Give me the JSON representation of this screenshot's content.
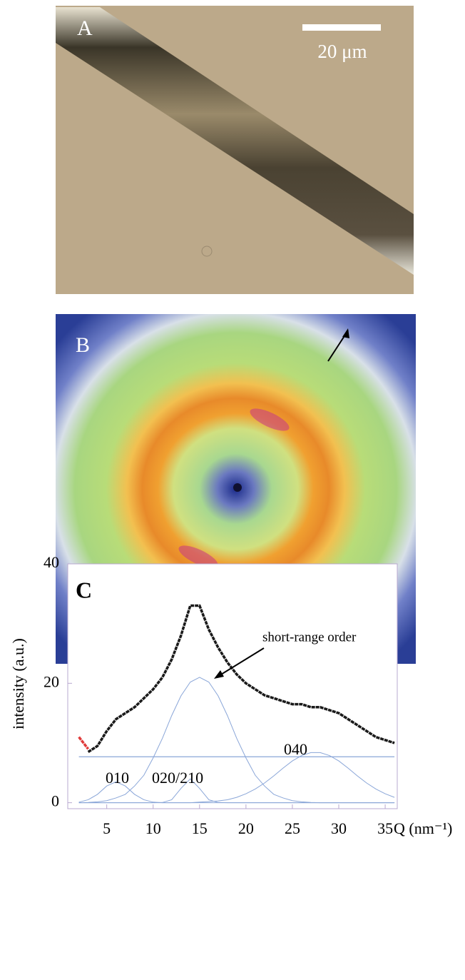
{
  "panels": [
    {
      "label": "A",
      "scale_bar": "20 μm"
    },
    {
      "label": "B"
    }
  ],
  "chart_data": {
    "type": "line",
    "label": "C",
    "x_label": "Q (nm⁻¹)",
    "y_label": "intensity (a.u.)",
    "xlim": [
      0.8,
      36.3
    ],
    "ylim": [
      -1,
      40
    ],
    "xticks": [
      5,
      10,
      15,
      20,
      25,
      30,
      35
    ],
    "yticks": [
      0,
      20,
      40
    ],
    "x": [
      2,
      3,
      4,
      5,
      6,
      7,
      8,
      9,
      10,
      11,
      12,
      13,
      14,
      15,
      16,
      17,
      18,
      19,
      20,
      21,
      22,
      23,
      24,
      25,
      26,
      27,
      28,
      29,
      30,
      31,
      32,
      33,
      34,
      35,
      36
    ],
    "series": [
      {
        "name": "measured",
        "color": "#1a1a1a",
        "width": 3.5,
        "values": [
          null,
          8.5,
          9.5,
          12,
          14,
          15,
          16,
          17.5,
          19,
          21,
          24,
          28,
          33,
          33,
          29,
          26,
          23.5,
          21.5,
          20,
          19,
          18,
          17.5,
          17,
          16.5,
          16.5,
          16,
          16,
          15.5,
          15,
          14,
          13,
          12,
          11,
          10.5,
          10
        ]
      },
      {
        "name": "low-Q",
        "color": "#e03a3a",
        "width": 3.5,
        "values": [
          11,
          9,
          null,
          null,
          null,
          null,
          null,
          null,
          null,
          null,
          null,
          null,
          null,
          null,
          null,
          null,
          null,
          null,
          null,
          null,
          null,
          null,
          null,
          null,
          null,
          null,
          null,
          null,
          null,
          null,
          null,
          null,
          null,
          null,
          null
        ]
      },
      {
        "name": "010",
        "color": "#8aa6d8",
        "width": 1,
        "values": [
          0.1,
          0.5,
          1.4,
          2.8,
          3.5,
          2.8,
          1.4,
          0.5,
          0.1,
          0,
          0,
          0,
          0,
          0,
          0,
          0,
          0,
          0,
          0,
          0,
          0,
          0,
          0,
          0,
          0,
          0,
          0,
          0,
          0,
          0,
          0,
          0,
          0,
          0,
          0
        ]
      },
      {
        "name": "020/210",
        "color": "#8aa6d8",
        "width": 1,
        "values": [
          0,
          0,
          0,
          0,
          0,
          0,
          0,
          0,
          0,
          0.04,
          0.5,
          2.4,
          4,
          2.4,
          0.5,
          0.04,
          0,
          0,
          0,
          0,
          0,
          0,
          0,
          0,
          0,
          0,
          0,
          0,
          0,
          0,
          0,
          0,
          0,
          0,
          0
        ]
      },
      {
        "name": "short-range order",
        "color": "#8aa6d8",
        "width": 1,
        "values": [
          0,
          0.05,
          0.15,
          0.35,
          0.8,
          1.4,
          2.8,
          4.6,
          7.5,
          10.8,
          14.6,
          17.9,
          20.2,
          21,
          20.2,
          17.9,
          14.6,
          10.8,
          7.5,
          4.6,
          2.8,
          1.4,
          0.8,
          0.35,
          0.15,
          0.05,
          0,
          0,
          0,
          0,
          0,
          0,
          0,
          0,
          0
        ]
      },
      {
        "name": "040",
        "color": "#8aa6d8",
        "width": 1,
        "values": [
          0,
          0,
          0,
          0,
          0,
          0,
          0,
          0,
          0,
          0,
          0,
          0,
          0,
          0.1,
          0.2,
          0.3,
          0.5,
          0.9,
          1.5,
          2.3,
          3.3,
          4.5,
          5.8,
          7,
          7.9,
          8.4,
          8.4,
          7.9,
          7,
          5.8,
          4.5,
          3.3,
          2.3,
          1.5,
          0.9
        ]
      },
      {
        "name": "baseline",
        "color": "#8aa6d8",
        "width": 1.2,
        "values": [
          7.7,
          7.7,
          7.7,
          7.7,
          7.7,
          7.7,
          7.7,
          7.7,
          7.7,
          7.7,
          7.7,
          7.7,
          7.7,
          7.7,
          7.7,
          7.7,
          7.7,
          7.7,
          7.7,
          7.7,
          7.7,
          7.7,
          7.7,
          7.7,
          7.7,
          7.7,
          7.7,
          7.7,
          7.7,
          7.7,
          7.7,
          7.7,
          7.7,
          7.7,
          7.7
        ]
      }
    ],
    "annotations": [
      "010",
      "020/210",
      "040",
      "short-range order"
    ]
  }
}
